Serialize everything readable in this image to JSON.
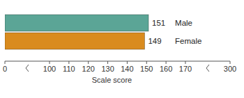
{
  "chart_data": {
    "type": "bar",
    "orientation": "horizontal",
    "categories": [
      "Male",
      "Female"
    ],
    "values": [
      151,
      149
    ],
    "colors": [
      "#5ba596",
      "#d98b1e"
    ],
    "xlim": [
      0,
      300
    ],
    "xticks": [
      0,
      100,
      110,
      120,
      130,
      140,
      150,
      160,
      170,
      300
    ],
    "x_label": "Scale score",
    "data_labels": true,
    "grid": false
  }
}
